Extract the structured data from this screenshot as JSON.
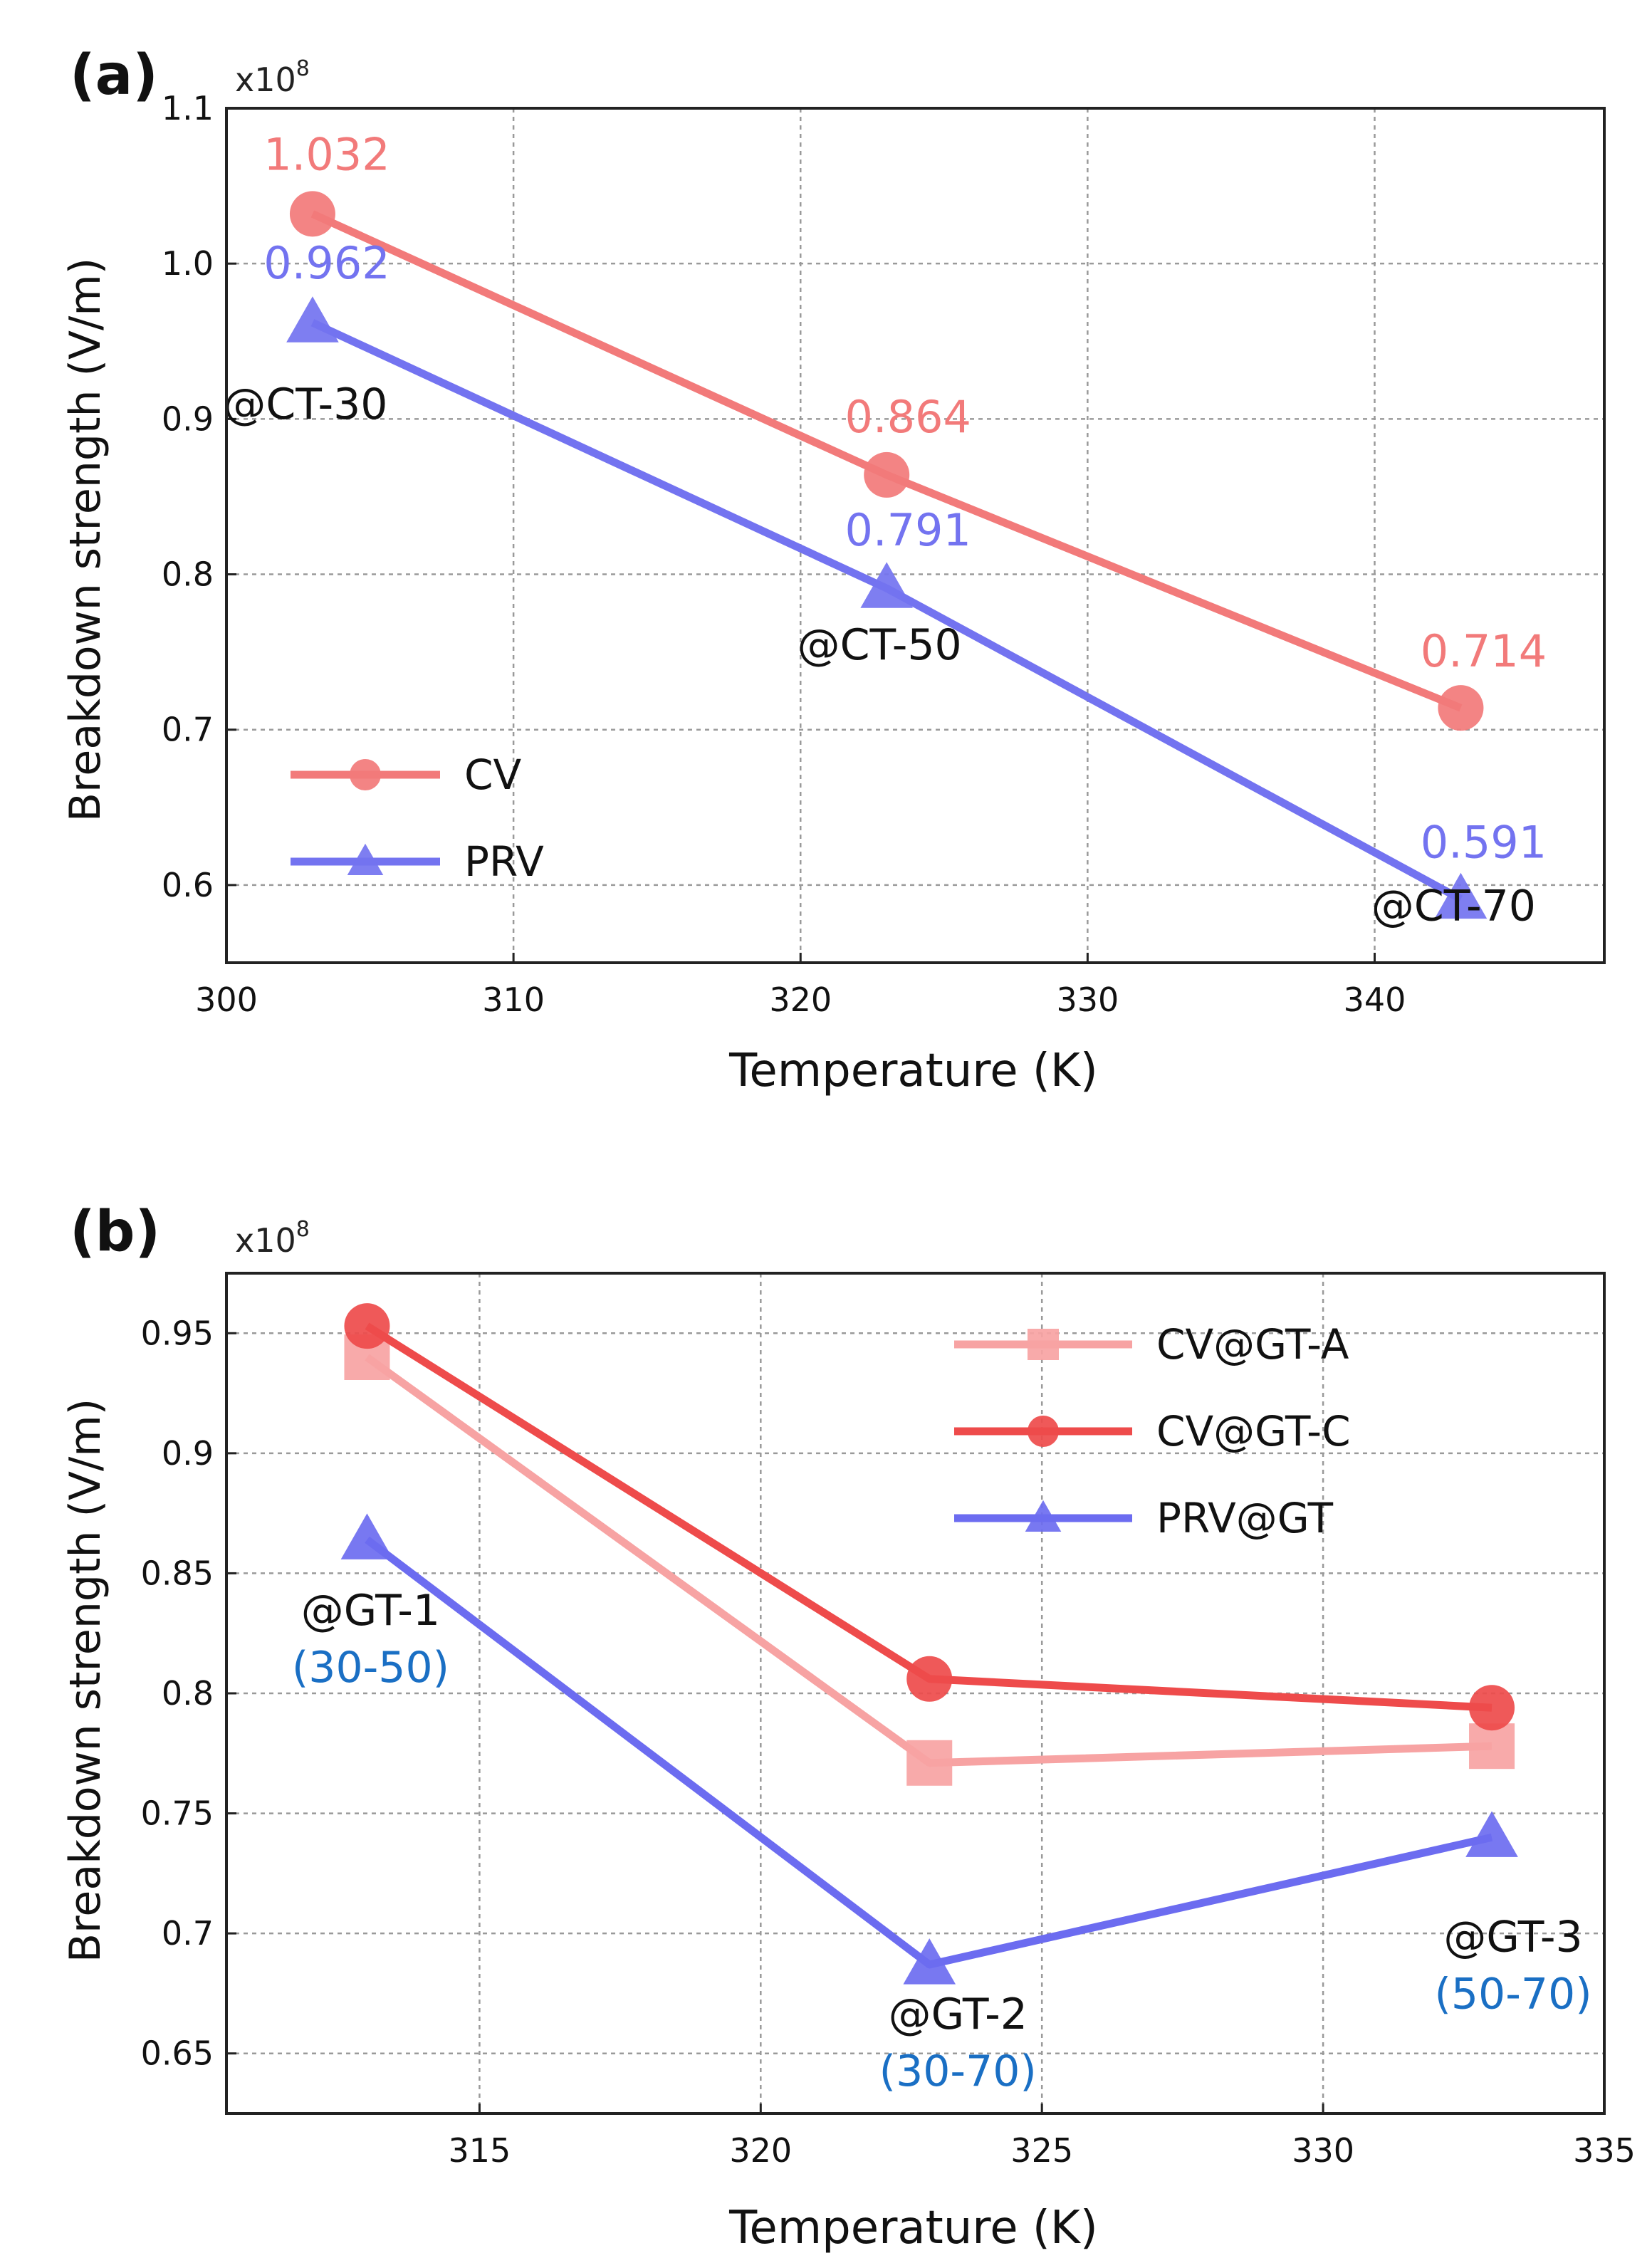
{
  "chart_data": [
    {
      "type": "line",
      "panel_label": "(a)",
      "y_multiplier": "x10",
      "y_multiplier_exp": "8",
      "xlabel": "Temperature (K)",
      "ylabel": "Breakdown strength (V/m)",
      "xlim": [
        300,
        348
      ],
      "ylim": [
        0.55,
        1.1
      ],
      "xticks": [
        300,
        310,
        320,
        330,
        340
      ],
      "xtick_labels": [
        "300",
        "310",
        "320",
        "330",
        "340"
      ],
      "yticks": [
        0.6,
        0.7,
        0.8,
        0.9,
        1.0,
        1.1
      ],
      "ytick_labels": [
        "0.6",
        "0.7",
        "0.8",
        "0.9",
        "1.0",
        "1.1"
      ],
      "grid": true,
      "legend_position": "bottom-left",
      "series": [
        {
          "name": "CV",
          "marker": "circle",
          "color": "#F27A7A",
          "x": [
            303,
            323,
            343
          ],
          "values": [
            1.032,
            0.864,
            0.714
          ],
          "value_labels": [
            "1.032",
            "0.864",
            "0.714"
          ]
        },
        {
          "name": "PRV",
          "marker": "triangle",
          "color": "#7373F0",
          "x": [
            303,
            323,
            343
          ],
          "values": [
            0.962,
            0.791,
            0.591
          ],
          "value_labels": [
            "0.962",
            "0.791",
            "0.591"
          ]
        }
      ],
      "annotations": [
        {
          "text": "@CT-30",
          "x": 303,
          "y": 0.962
        },
        {
          "text": "@CT-50",
          "x": 323,
          "y": 0.791
        },
        {
          "text": "@CT-70",
          "x": 343,
          "y": 0.591
        }
      ]
    },
    {
      "type": "line",
      "panel_label": "(b)",
      "y_multiplier": "x10",
      "y_multiplier_exp": "8",
      "xlabel": "Temperature (K)",
      "ylabel": "Breakdown strength (V/m)",
      "xlim": [
        310.5,
        335
      ],
      "ylim": [
        0.625,
        0.975
      ],
      "xticks": [
        315,
        320,
        325,
        330,
        335
      ],
      "xtick_labels": [
        "315",
        "320",
        "325",
        "330",
        "335"
      ],
      "yticks": [
        0.65,
        0.7,
        0.75,
        0.8,
        0.85,
        0.9,
        0.95
      ],
      "ytick_labels": [
        "0.65",
        "0.7",
        "0.75",
        "0.8",
        "0.85",
        "0.9",
        "0.95"
      ],
      "grid": true,
      "legend_position": "top-right",
      "series": [
        {
          "name": "CV@GT-A",
          "marker": "square",
          "color": "#F7A3A3",
          "x": [
            313,
            323,
            333
          ],
          "values": [
            0.94,
            0.771,
            0.778
          ]
        },
        {
          "name": "CV@GT-C",
          "marker": "circle",
          "color": "#EE4B4B",
          "x": [
            313,
            323,
            333
          ],
          "values": [
            0.953,
            0.806,
            0.794
          ]
        },
        {
          "name": "PRV@GT",
          "marker": "triangle",
          "color": "#6C6CF0",
          "x": [
            313,
            323,
            333
          ],
          "values": [
            0.864,
            0.687,
            0.74
          ]
        }
      ],
      "annotations": [
        {
          "text": "@GT-1",
          "sub": "(30-50)",
          "x": 313,
          "y": 0.864
        },
        {
          "text": "@GT-2",
          "sub": "(30-70)",
          "x": 323,
          "y": 0.687
        },
        {
          "text": "@GT-3",
          "sub": "(50-70)",
          "x": 333,
          "y": 0.74
        }
      ]
    }
  ]
}
